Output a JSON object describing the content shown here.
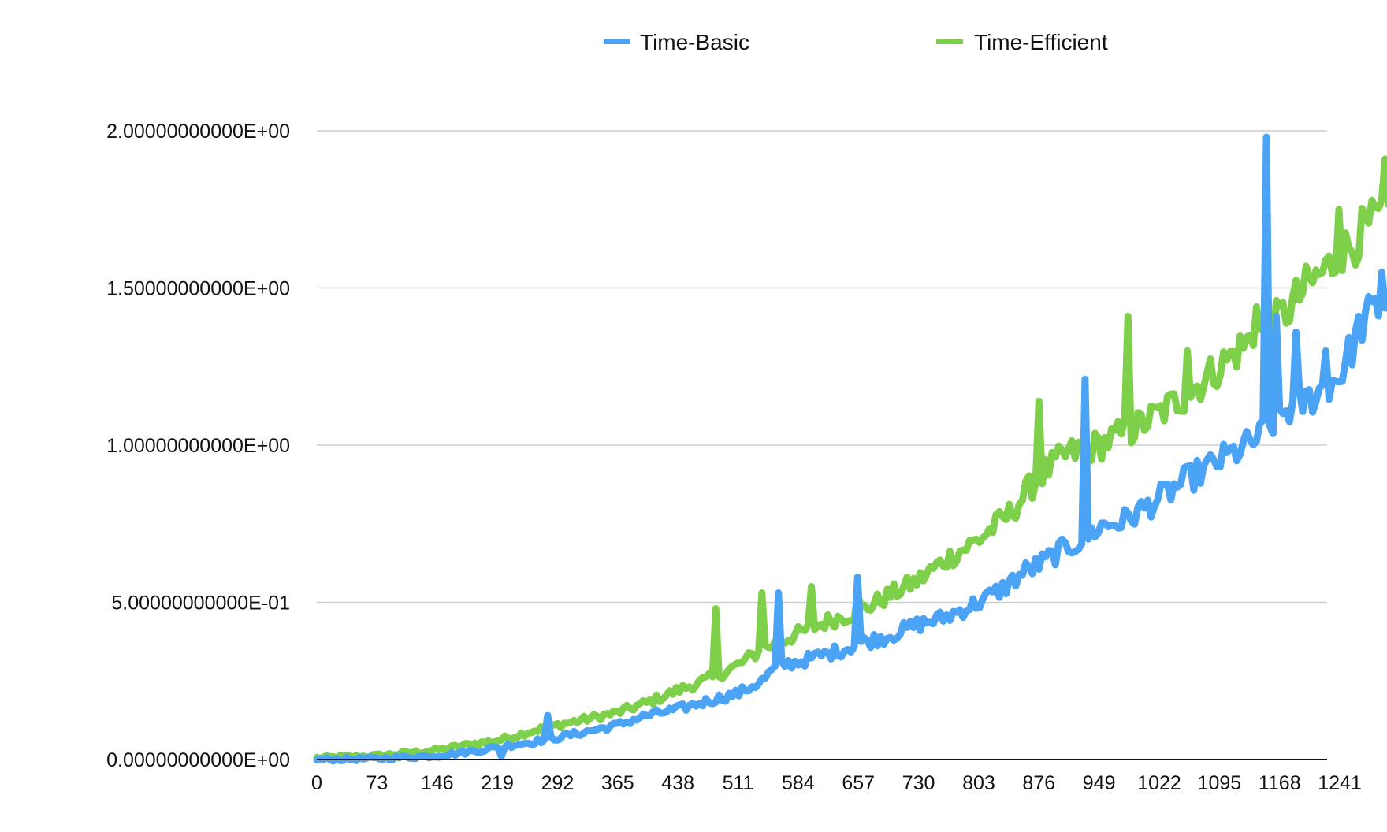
{
  "chart_data": {
    "type": "line",
    "title": "",
    "xlabel": "",
    "ylabel": "",
    "xlim": [
      0,
      1314
    ],
    "ylim": [
      0,
      2
    ],
    "grid": true,
    "legend": "top-center",
    "y_ticks": [
      0,
      0.5,
      1.0,
      1.5,
      2.0
    ],
    "y_tick_labels": [
      "0.00000000000E+00",
      "5.00000000000E-01",
      "1.00000000000E+00",
      "1.50000000000E+00",
      "2.00000000000E+00"
    ],
    "x_ticks": [
      0,
      73,
      146,
      219,
      292,
      365,
      438,
      511,
      584,
      657,
      730,
      803,
      876,
      949,
      1022,
      1095,
      1168,
      1241
    ],
    "x_tick_labels": [
      "0",
      "73",
      "146",
      "219",
      "292",
      "365",
      "438",
      "511",
      "584",
      "657",
      "730",
      "803",
      "876",
      "949",
      "1022",
      "1095",
      "1168",
      "1241"
    ],
    "series": [
      {
        "name": "Time-Basic",
        "color": "#4aa3f5",
        "points": [
          [
            0,
            0
          ],
          [
            73,
            0.003
          ],
          [
            146,
            0.012
          ],
          [
            200,
            0.03
          ],
          [
            219,
            0.04
          ],
          [
            260,
            0.055
          ],
          [
            292,
            0.07
          ],
          [
            330,
            0.09
          ],
          [
            365,
            0.11
          ],
          [
            400,
            0.14
          ],
          [
            438,
            0.16
          ],
          [
            480,
            0.19
          ],
          [
            511,
            0.21
          ],
          [
            540,
            0.25
          ],
          [
            560,
            0.3
          ],
          [
            584,
            0.31
          ],
          [
            610,
            0.33
          ],
          [
            640,
            0.35
          ],
          [
            657,
            0.37
          ],
          [
            690,
            0.39
          ],
          [
            730,
            0.43
          ],
          [
            760,
            0.45
          ],
          [
            803,
            0.5
          ],
          [
            830,
            0.54
          ],
          [
            860,
            0.6
          ],
          [
            876,
            0.62
          ],
          [
            900,
            0.66
          ],
          [
            930,
            0.7
          ],
          [
            949,
            0.74
          ],
          [
            980,
            0.76
          ],
          [
            1022,
            0.83
          ],
          [
            1050,
            0.88
          ],
          [
            1095,
            0.95
          ],
          [
            1130,
            1.0
          ],
          [
            1150,
            1.04
          ],
          [
            1168,
            1.1
          ],
          [
            1200,
            1.14
          ],
          [
            1241,
            1.22
          ],
          [
            1270,
            1.4
          ],
          [
            1300,
            1.46
          ],
          [
            1314,
            1.45
          ]
        ],
        "spikes": [
          [
            225,
            0.01
          ],
          [
            280,
            0.14
          ],
          [
            560,
            0.53
          ],
          [
            655,
            0.58
          ],
          [
            930,
            1.21
          ],
          [
            1150,
            1.98
          ],
          [
            1165,
            1.41
          ],
          [
            1186,
            1.36
          ],
          [
            1222,
            1.3
          ],
          [
            1293,
            1.55
          ]
        ]
      },
      {
        "name": "Time-Efficient",
        "color": "#7ed04b",
        "points": [
          [
            0,
            0.005
          ],
          [
            73,
            0.012
          ],
          [
            146,
            0.03
          ],
          [
            190,
            0.05
          ],
          [
            219,
            0.06
          ],
          [
            260,
            0.09
          ],
          [
            292,
            0.11
          ],
          [
            330,
            0.13
          ],
          [
            365,
            0.15
          ],
          [
            400,
            0.18
          ],
          [
            438,
            0.22
          ],
          [
            480,
            0.26
          ],
          [
            511,
            0.3
          ],
          [
            540,
            0.35
          ],
          [
            584,
            0.4
          ],
          [
            620,
            0.44
          ],
          [
            657,
            0.47
          ],
          [
            700,
            0.53
          ],
          [
            730,
            0.57
          ],
          [
            760,
            0.63
          ],
          [
            803,
            0.7
          ],
          [
            840,
            0.78
          ],
          [
            876,
            0.9
          ],
          [
            910,
            0.97
          ],
          [
            949,
            1.0
          ],
          [
            990,
            1.05
          ],
          [
            1022,
            1.1
          ],
          [
            1060,
            1.17
          ],
          [
            1095,
            1.25
          ],
          [
            1130,
            1.33
          ],
          [
            1168,
            1.4
          ],
          [
            1200,
            1.5
          ],
          [
            1241,
            1.6
          ],
          [
            1270,
            1.68
          ],
          [
            1300,
            1.74
          ],
          [
            1314,
            1.78
          ]
        ],
        "spikes": [
          [
            485,
            0.48
          ],
          [
            540,
            0.53
          ],
          [
            600,
            0.55
          ],
          [
            655,
            0.53
          ],
          [
            876,
            1.14
          ],
          [
            985,
            1.41
          ],
          [
            1055,
            1.3
          ],
          [
            1141,
            1.44
          ],
          [
            1241,
            1.75
          ],
          [
            1295,
            1.91
          ]
        ]
      }
    ]
  }
}
